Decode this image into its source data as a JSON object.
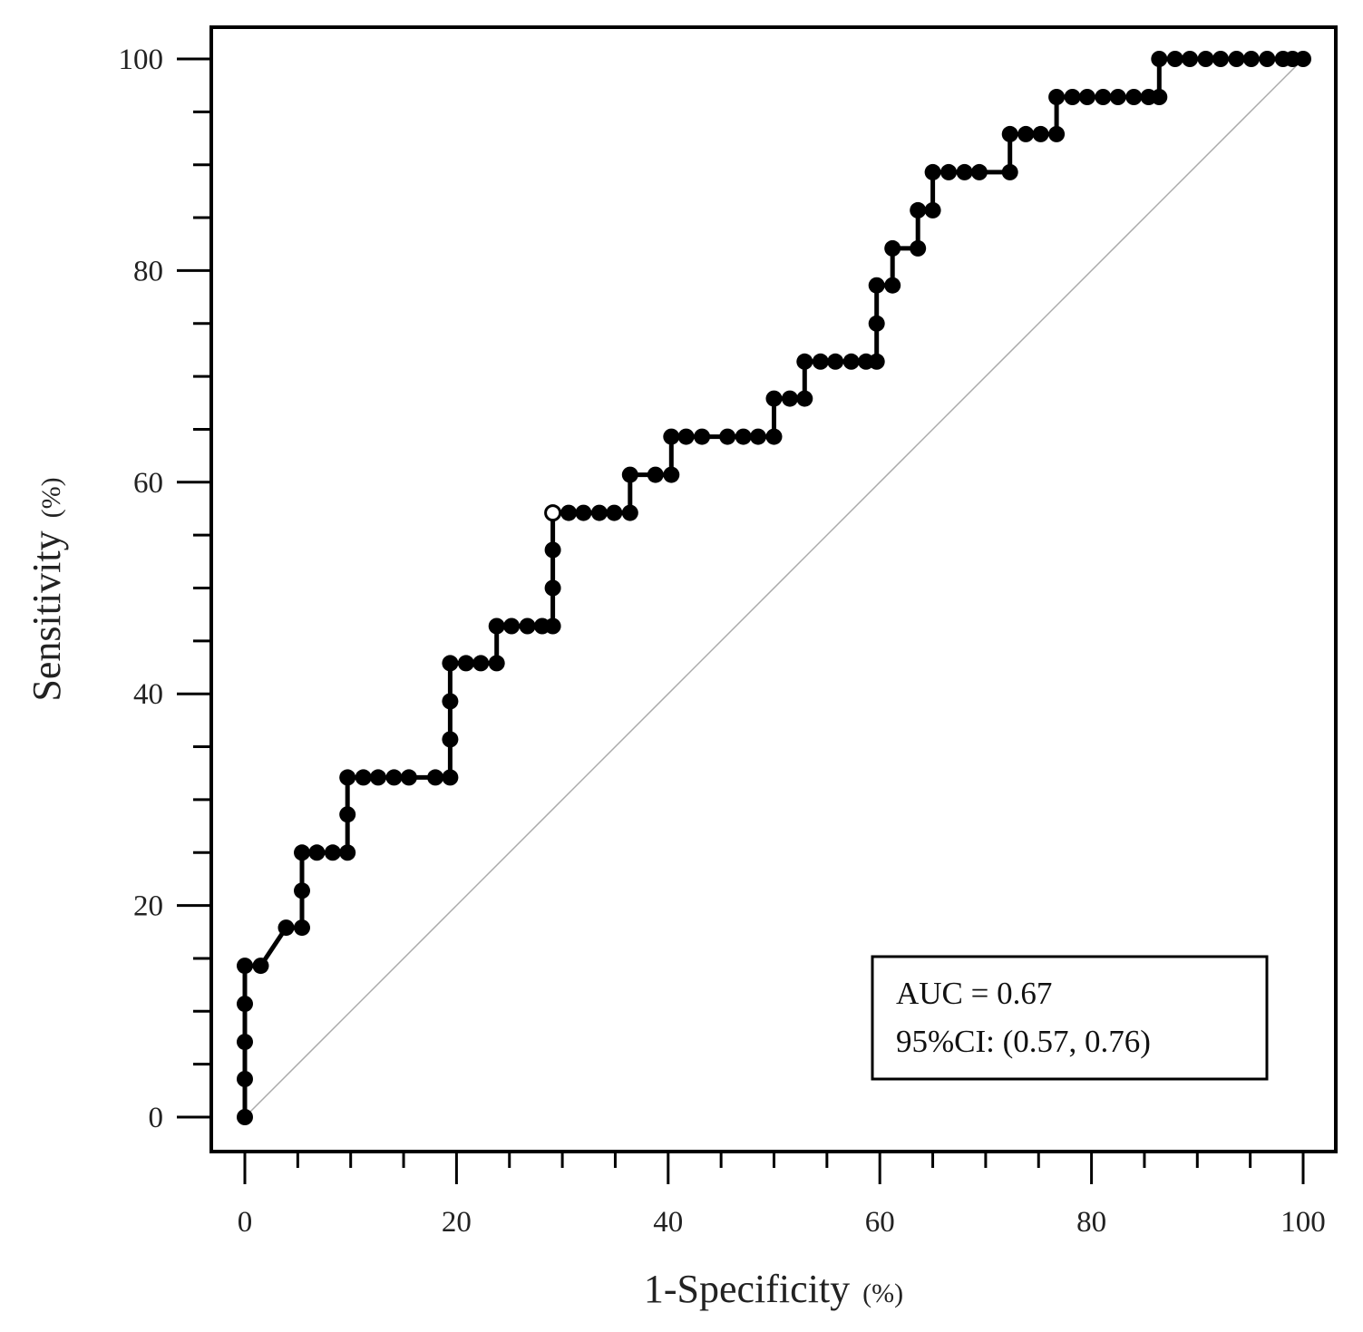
{
  "chart_data": {
    "type": "line",
    "title": "",
    "xlabel": "1-Specificity",
    "xlabel_unit": "(%)",
    "ylabel": "Sensitivity",
    "ylabel_unit": "(%)",
    "xlim": [
      0,
      100
    ],
    "ylim": [
      0,
      100
    ],
    "xticks": [
      0,
      20,
      40,
      60,
      80,
      100
    ],
    "yticks": [
      0,
      20,
      40,
      60,
      80,
      100
    ],
    "x_tick_labels": [
      "0",
      "20",
      "40",
      "60",
      "80",
      "100"
    ],
    "y_tick_labels": [
      "0",
      "20",
      "40",
      "60",
      "80",
      "100"
    ],
    "reference_line": {
      "name": "chance line",
      "points": [
        [
          0,
          0
        ],
        [
          100,
          100
        ]
      ],
      "color": "#aaaaaa"
    },
    "optimal_point": {
      "x": 29.1,
      "y": 57.1
    },
    "series": [
      {
        "name": "ROC curve",
        "color": "#000000",
        "points": [
          [
            0,
            0
          ],
          [
            0,
            3.6
          ],
          [
            0,
            7.1
          ],
          [
            0,
            10.7
          ],
          [
            0,
            14.3
          ],
          [
            1.5,
            14.3
          ],
          [
            3.9,
            17.9
          ],
          [
            5.4,
            17.9
          ],
          [
            5.4,
            21.4
          ],
          [
            5.4,
            25.0
          ],
          [
            6.8,
            25.0
          ],
          [
            8.3,
            25.0
          ],
          [
            9.7,
            25.0
          ],
          [
            9.7,
            28.6
          ],
          [
            9.7,
            32.1
          ],
          [
            11.2,
            32.1
          ],
          [
            12.6,
            32.1
          ],
          [
            14.1,
            32.1
          ],
          [
            15.5,
            32.1
          ],
          [
            18.0,
            32.1
          ],
          [
            19.4,
            32.1
          ],
          [
            19.4,
            35.7
          ],
          [
            19.4,
            39.3
          ],
          [
            19.4,
            42.9
          ],
          [
            20.9,
            42.9
          ],
          [
            22.3,
            42.9
          ],
          [
            23.8,
            42.9
          ],
          [
            23.8,
            46.4
          ],
          [
            25.2,
            46.4
          ],
          [
            26.7,
            46.4
          ],
          [
            28.1,
            46.4
          ],
          [
            29.1,
            46.4
          ],
          [
            29.1,
            50.0
          ],
          [
            29.1,
            53.6
          ],
          [
            29.1,
            57.1
          ],
          [
            30.6,
            57.1
          ],
          [
            32.0,
            57.1
          ],
          [
            33.5,
            57.1
          ],
          [
            34.9,
            57.1
          ],
          [
            36.4,
            57.1
          ],
          [
            36.4,
            60.7
          ],
          [
            38.8,
            60.7
          ],
          [
            40.3,
            60.7
          ],
          [
            40.3,
            64.3
          ],
          [
            41.7,
            64.3
          ],
          [
            43.2,
            64.3
          ],
          [
            45.6,
            64.3
          ],
          [
            47.1,
            64.3
          ],
          [
            48.5,
            64.3
          ],
          [
            50.0,
            64.3
          ],
          [
            50.0,
            67.9
          ],
          [
            51.5,
            67.9
          ],
          [
            52.9,
            67.9
          ],
          [
            52.9,
            71.4
          ],
          [
            54.4,
            71.4
          ],
          [
            55.8,
            71.4
          ],
          [
            57.3,
            71.4
          ],
          [
            58.7,
            71.4
          ],
          [
            59.7,
            71.4
          ],
          [
            59.7,
            75.0
          ],
          [
            59.7,
            78.6
          ],
          [
            61.2,
            78.6
          ],
          [
            61.2,
            82.1
          ],
          [
            63.6,
            82.1
          ],
          [
            63.6,
            85.7
          ],
          [
            65.0,
            85.7
          ],
          [
            65.0,
            89.3
          ],
          [
            66.5,
            89.3
          ],
          [
            68.0,
            89.3
          ],
          [
            69.4,
            89.3
          ],
          [
            72.3,
            89.3
          ],
          [
            72.3,
            92.9
          ],
          [
            73.8,
            92.9
          ],
          [
            75.2,
            92.9
          ],
          [
            76.7,
            92.9
          ],
          [
            76.7,
            96.4
          ],
          [
            78.2,
            96.4
          ],
          [
            79.6,
            96.4
          ],
          [
            81.1,
            96.4
          ],
          [
            82.5,
            96.4
          ],
          [
            84.0,
            96.4
          ],
          [
            85.4,
            96.4
          ],
          [
            86.4,
            96.4
          ],
          [
            86.4,
            100
          ],
          [
            87.9,
            100
          ],
          [
            89.3,
            100
          ],
          [
            90.8,
            100
          ],
          [
            92.2,
            100
          ],
          [
            93.7,
            100
          ],
          [
            95.1,
            100
          ],
          [
            96.6,
            100
          ],
          [
            98.1,
            100
          ],
          [
            99.0,
            100
          ],
          [
            100,
            100
          ]
        ]
      }
    ],
    "annotations": {
      "auc_line": "AUC = 0.67",
      "ci_line": "95%CI: (0.57, 0.76)"
    }
  }
}
